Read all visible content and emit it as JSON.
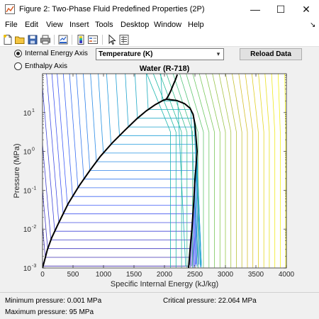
{
  "window": {
    "title": "Figure 2: Two-Phase Fluid Predefined Properties (2P)",
    "minimize_glyph": "—",
    "maximize_glyph": "☐",
    "close_glyph": "✕"
  },
  "menu": {
    "items": [
      "File",
      "Edit",
      "View",
      "Insert",
      "Tools",
      "Desktop",
      "Window",
      "Help"
    ],
    "overflow_glyph": "↘"
  },
  "toolbar": {
    "icons": [
      "new-figure-icon",
      "open-file-icon",
      "save-icon",
      "print-icon",
      "link-plot-icon",
      "colorbar-icon",
      "legend-icon",
      "pointer-icon",
      "property-inspector-icon"
    ]
  },
  "controls": {
    "radio_internal_energy": "Internal Energy Axis",
    "radio_enthalpy": "Enthalpy Axis",
    "selected_axis": "internal-energy",
    "property_dropdown": "Temperature (K)",
    "dropdown_arrow": "▾",
    "reload_button": "Reload Data"
  },
  "chart_data": {
    "type": "line",
    "title": "Water (R-718)",
    "xlabel": "Specific Internal Energy (kJ/kg)",
    "ylabel": "Pressure (MPa)",
    "x_scale": "linear",
    "y_scale": "log",
    "xlim": [
      0,
      4000
    ],
    "ylim": [
      0.001,
      100
    ],
    "x_ticks": [
      0,
      500,
      1000,
      1500,
      2000,
      2500,
      3000,
      3500,
      4000
    ],
    "y_ticks": [
      0.001,
      0.01,
      0.1,
      1,
      10
    ],
    "y_tick_exponents": [
      "-3",
      "-2",
      "-1",
      "0",
      "1"
    ],
    "y_tick_base": "10",
    "grid": false,
    "colormap": "parula",
    "saturation_dome": {
      "liquid": {
        "x": [
          0,
          30,
          80,
          150,
          260,
          420,
          600,
          780,
          950,
          1150,
          1350,
          1550,
          1700,
          1850,
          1975,
          2030
        ],
        "y": [
          0.001,
          0.0015,
          0.003,
          0.006,
          0.014,
          0.045,
          0.13,
          0.33,
          0.75,
          1.7,
          3.5,
          7,
          11,
          16,
          20.5,
          22.064
        ]
      },
      "vapor": {
        "x": [
          2030,
          2200,
          2330,
          2420,
          2470,
          2500,
          2520,
          2535,
          2510,
          2495,
          2480,
          2450,
          2420,
          2405,
          2395
        ],
        "y": [
          22.064,
          20.5,
          17,
          13,
          9,
          5,
          2,
          1,
          0.3,
          0.15,
          0.05,
          0.01,
          0.003,
          0.0015,
          0.001
        ]
      },
      "supercritical_line": {
        "x": [
          2030,
          2070,
          2100,
          2140,
          2180,
          2210
        ],
        "y": [
          22.064,
          28,
          35,
          50,
          70,
          95
        ]
      },
      "color": "#000000"
    },
    "isotherm_count": 42
  },
  "footer": {
    "min_pressure": "Minimum pressure: 0.001 MPa",
    "max_pressure": "Maximum pressure: 95 MPa",
    "critical_pressure": "Critical pressure: 22.064 MPa"
  }
}
